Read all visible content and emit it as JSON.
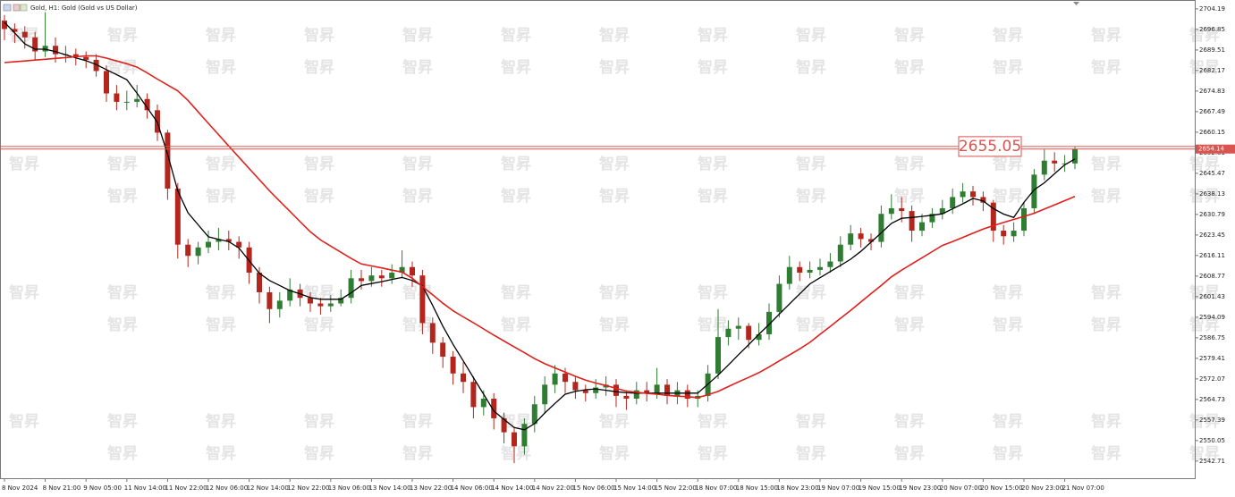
{
  "chart_data": {
    "type": "candlestick",
    "title": "Gold, H1: Gold (Gold vs US Dollar)",
    "watermark": "智昇",
    "categories": [
      "8 Nov 2024",
      null,
      null,
      null,
      "8 Nov 21:00",
      null,
      null,
      null,
      "9 Nov 05:00",
      null,
      null,
      null,
      "11 Nov 14:00",
      null,
      null,
      null,
      "11 Nov 22:00",
      null,
      null,
      null,
      "12 Nov 06:00",
      null,
      null,
      null,
      "12 Nov 14:00",
      null,
      null,
      null,
      "12 Nov 22:00",
      null,
      null,
      null,
      "13 Nov 06:00",
      null,
      null,
      null,
      "13 Nov 14:00",
      null,
      null,
      null,
      "13 Nov 22:00",
      null,
      null,
      null,
      "14 Nov 06:00",
      null,
      null,
      null,
      "14 Nov 14:00",
      null,
      null,
      null,
      "14 Nov 22:00",
      null,
      null,
      null,
      "15 Nov 06:00",
      null,
      null,
      null,
      "15 Nov 14:00",
      null,
      null,
      null,
      "15 Nov 22:00",
      null,
      null,
      null,
      "18 Nov 07:00",
      null,
      null,
      null,
      "18 Nov 15:00",
      null,
      null,
      null,
      "18 Nov 23:00",
      null,
      null,
      null,
      "19 Nov 07:00",
      null,
      null,
      null,
      "19 Nov 15:00",
      null,
      null,
      null,
      "19 Nov 23:00",
      null,
      null,
      null,
      "20 Nov 07:00",
      null,
      null,
      null,
      "20 Nov 15:00",
      null,
      null,
      null,
      "20 Nov 23:00",
      null,
      null,
      null,
      "21 Nov 07:00",
      null
    ],
    "open": [
      2700,
      2697,
      2696,
      2694,
      2689,
      2691,
      2688,
      2688,
      2687,
      2686,
      2682,
      2674,
      2671,
      2671,
      2672,
      2668,
      2660,
      2640,
      2620,
      2616,
      2619,
      2621,
      2622,
      2621,
      2619,
      2610,
      2603,
      2597,
      2600,
      2604,
      2601,
      2599,
      2598,
      2599,
      2601,
      2608,
      2607,
      2609,
      2608,
      2610,
      2612,
      2609,
      2592,
      2585,
      2580,
      2574,
      2571,
      2562,
      2565,
      2558,
      2553,
      2548,
      2556,
      2563,
      2570,
      2574,
      2571,
      2568,
      2567,
      2569,
      2570,
      2566,
      2565,
      2568,
      2567,
      2570,
      2566,
      2568,
      2565,
      2566,
      2574,
      2587,
      2590,
      2591,
      2586,
      2588,
      2596,
      2606,
      2612,
      2610,
      2611,
      2612,
      2614,
      2620,
      2624,
      2622,
      2621,
      2631,
      2633,
      2632,
      2625,
      2628,
      2631,
      2633,
      2637,
      2639,
      2637,
      2635,
      2625,
      2623,
      2625,
      2633,
      2645,
      2650,
      2649,
      2649
    ],
    "high": [
      2702,
      2699,
      2698,
      2696,
      2703,
      2694,
      2691,
      2690,
      2689,
      2688,
      2684,
      2677,
      2675,
      2677,
      2674,
      2670,
      2661,
      2642,
      2622,
      2621,
      2625,
      2626,
      2625,
      2623,
      2621,
      2612,
      2605,
      2603,
      2608,
      2606,
      2603,
      2601,
      2602,
      2604,
      2611,
      2611,
      2612,
      2611,
      2613,
      2618,
      2614,
      2611,
      2594,
      2587,
      2582,
      2578,
      2573,
      2568,
      2567,
      2560,
      2555,
      2558,
      2566,
      2573,
      2577,
      2576,
      2573,
      2570,
      2572,
      2573,
      2572,
      2568,
      2571,
      2571,
      2576,
      2572,
      2571,
      2570,
      2568,
      2577,
      2597,
      2593,
      2594,
      2592,
      2592,
      2599,
      2609,
      2616,
      2614,
      2614,
      2615,
      2617,
      2623,
      2627,
      2626,
      2624,
      2634,
      2638,
      2637,
      2634,
      2631,
      2633,
      2636,
      2640,
      2642,
      2641,
      2639,
      2636,
      2627,
      2628,
      2635,
      2647,
      2654,
      2653,
      2652,
      2655.05
    ],
    "low": [
      2693,
      2692,
      2690,
      2686,
      2687,
      2685,
      2685,
      2684,
      2683,
      2680,
      2671,
      2668,
      2668,
      2669,
      2665,
      2657,
      2636,
      2615,
      2612,
      2613,
      2617,
      2618,
      2618,
      2615,
      2606,
      2599,
      2592,
      2594,
      2598,
      2598,
      2596,
      2595,
      2596,
      2598,
      2599,
      2604,
      2605,
      2605,
      2606,
      2608,
      2605,
      2588,
      2581,
      2576,
      2570,
      2567,
      2558,
      2559,
      2554,
      2549,
      2542,
      2545,
      2553,
      2560,
      2567,
      2567,
      2565,
      2564,
      2565,
      2566,
      2562,
      2561,
      2563,
      2564,
      2565,
      2563,
      2563,
      2562,
      2562,
      2564,
      2572,
      2584,
      2586,
      2583,
      2584,
      2586,
      2594,
      2604,
      2607,
      2608,
      2609,
      2610,
      2612,
      2618,
      2619,
      2618,
      2619,
      2629,
      2628,
      2621,
      2623,
      2626,
      2629,
      2631,
      2635,
      2634,
      2632,
      2621,
      2620,
      2621,
      2623,
      2631,
      2643,
      2646,
      2646,
      2647
    ],
    "close": [
      2697,
      2696,
      2694,
      2689,
      2691,
      2688,
      2688,
      2687,
      2686,
      2682,
      2674,
      2671,
      2671,
      2672,
      2668,
      2660,
      2640,
      2620,
      2616,
      2619,
      2621,
      2622,
      2621,
      2619,
      2610,
      2603,
      2597,
      2600,
      2604,
      2601,
      2599,
      2598,
      2599,
      2601,
      2608,
      2607,
      2609,
      2608,
      2610,
      2612,
      2609,
      2592,
      2585,
      2580,
      2574,
      2571,
      2562,
      2565,
      2558,
      2553,
      2548,
      2556,
      2563,
      2570,
      2574,
      2571,
      2568,
      2567,
      2569,
      2570,
      2566,
      2565,
      2568,
      2567,
      2570,
      2566,
      2568,
      2565,
      2566,
      2574,
      2587,
      2590,
      2591,
      2586,
      2588,
      2596,
      2606,
      2612,
      2610,
      2611,
      2612,
      2614,
      2620,
      2624,
      2622,
      2621,
      2631,
      2633,
      2632,
      2625,
      2628,
      2631,
      2633,
      2637,
      2639,
      2637,
      2635,
      2625,
      2623,
      2625,
      2633,
      2645,
      2650,
      2649,
      2649,
      2654.14
    ],
    "up_color": "#2f7d32",
    "down_color": "#b3261e",
    "series": [
      {
        "color": "#000000",
        "values": [
          2699.4,
          2695.6,
          2691.7,
          2689.8,
          2689.8,
          2688.9,
          2687.8,
          2686.7,
          2685.7,
          2684.3,
          2682.5,
          2680.7,
          2678.9,
          2674.1,
          2668.9,
          2663.7,
          2652.3,
          2639.2,
          2631.4,
          2627.1,
          2622.8,
          2621.9,
          2621.1,
          2618.8,
          2614.3,
          2609.8,
          2607.2,
          2605.4,
          2603.6,
          2602.4,
          2601.1,
          2600.5,
          2600.5,
          2600.5,
          2602.8,
          2605.4,
          2606.1,
          2606.8,
          2607.6,
          2608.3,
          2607.2,
          2605.3,
          2598.3,
          2590.9,
          2584.4,
          2578.5,
          2572.5,
          2566.6,
          2560.6,
          2557.6,
          2554.7,
          2553.9,
          2556.1,
          2559.9,
          2563.3,
          2566.6,
          2567.6,
          2568.2,
          2568.5,
          2568.0,
          2567.5,
          2567.1,
          2567.0,
          2567.0,
          2567.0,
          2567.0,
          2567.0,
          2567.0,
          2567.0,
          2570.2,
          2573.4,
          2577.0,
          2580.7,
          2584.3,
          2588.0,
          2591.5,
          2595.2,
          2598.8,
          2602.4,
          2606.0,
          2608.2,
          2610.4,
          2612.6,
          2614.8,
          2617.6,
          2620.9,
          2624.2,
          2627.6,
          2629.4,
          2629.7,
          2630.1,
          2630.5,
          2631.0,
          2632.8,
          2634.6,
          2636.5,
          2635.6,
          2632.9,
          2630.9,
          2629.7,
          2635.1,
          2639.6,
          2642.1,
          2645.3,
          2648.5,
          2650.6
        ]
      },
      {
        "color": "#e0201b",
        "values": [
          2685.0,
          2685.3,
          2685.6,
          2685.9,
          2686.2,
          2686.5,
          2686.8,
          2687.1,
          2687.4,
          2687.4,
          2686.6,
          2685.6,
          2684.6,
          2683.4,
          2681.3,
          2679.1,
          2677.0,
          2674.9,
          2671.5,
          2667.4,
          2663.3,
          2659.3,
          2655.2,
          2651.2,
          2647.2,
          2643.2,
          2639.2,
          2635.5,
          2631.9,
          2628.2,
          2624.6,
          2621.7,
          2619.5,
          2617.3,
          2615.1,
          2613.1,
          2612.4,
          2611.7,
          2610.9,
          2610.2,
          2608.0,
          2605.0,
          2602.1,
          2599.1,
          2596.4,
          2594.2,
          2592.1,
          2589.9,
          2587.7,
          2585.6,
          2583.5,
          2581.4,
          2579.3,
          2577.5,
          2576.0,
          2574.5,
          2573.0,
          2571.6,
          2570.6,
          2569.7,
          2568.7,
          2567.7,
          2567.3,
          2566.9,
          2566.6,
          2566.2,
          2565.9,
          2565.7,
          2565.4,
          2566.4,
          2567.6,
          2569.3,
          2571.0,
          2572.6,
          2574.3,
          2576.3,
          2578.5,
          2580.6,
          2582.8,
          2585.1,
          2588.0,
          2590.8,
          2593.7,
          2596.5,
          2599.5,
          2602.5,
          2605.4,
          2608.5,
          2610.9,
          2613.1,
          2615.3,
          2617.5,
          2619.7,
          2621.1,
          2622.6,
          2624.1,
          2625.6,
          2626.8,
          2627.9,
          2629.0,
          2630.1,
          2631.2,
          2632.7,
          2634.2,
          2635.7,
          2637.2
        ]
      }
    ],
    "high_price": 2655.05,
    "last_price": 2654.14,
    "price_line_color": "#d9534f",
    "ylim": [
      2536.6,
      2706.4
    ],
    "yticks": [
      2704.19,
      2696.85,
      2689.51,
      2682.17,
      2674.83,
      2667.49,
      2660.15,
      2652.81,
      2645.47,
      2638.13,
      2630.79,
      2623.45,
      2616.11,
      2608.77,
      2601.43,
      2594.09,
      2586.75,
      2579.41,
      2572.07,
      2564.73,
      2557.39,
      2550.05,
      2542.71
    ],
    "grid": false
  }
}
